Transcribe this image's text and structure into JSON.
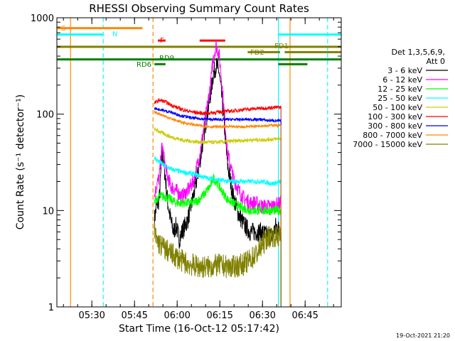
{
  "chart_data": {
    "type": "line",
    "title": "RHESSI Observing Summary Count Rates",
    "xlabel": "Start Time (16-Oct-12 05:17:42)",
    "ylabel": "Count Rate (s⁻¹ detector⁻¹)",
    "yscale": "log",
    "ylim": [
      1,
      1000
    ],
    "xlim_minutes": [
      0,
      100
    ],
    "x_ticks": [
      {
        "label": "05:30",
        "t": 12.3
      },
      {
        "label": "05:45",
        "t": 27.3
      },
      {
        "label": "06:00",
        "t": 42.3
      },
      {
        "label": "06:15",
        "t": 57.3
      },
      {
        "label": "06:30",
        "t": 72.3
      },
      {
        "label": "06:45",
        "t": 87.3
      }
    ],
    "y_ticks": [
      {
        "label": "1",
        "v": 1
      },
      {
        "label": "10",
        "v": 10
      },
      {
        "label": "100",
        "v": 100
      },
      {
        "label": "1000",
        "v": 1000
      }
    ],
    "legend": {
      "header": [
        "Det 1,3,5,6,9,",
        "Att 0"
      ],
      "entries": [
        {
          "label": "3 - 6 keV",
          "color": "#000000"
        },
        {
          "label": "6 - 12 keV",
          "color": "#ff00ff"
        },
        {
          "label": "12 - 25 keV",
          "color": "#00ff00"
        },
        {
          "label": "25 - 50 keV",
          "color": "#00ffff"
        },
        {
          "label": "50 - 100 keV",
          "color": "#cccc00"
        },
        {
          "label": "100 - 300 keV",
          "color": "#ff0000"
        },
        {
          "label": "300 - 800 keV",
          "color": "#0000ff"
        },
        {
          "label": "800 - 7000 keV",
          "color": "#ff8800"
        },
        {
          "label": "7000 - 15000 keV",
          "color": "#808000"
        }
      ]
    },
    "data_window_minutes": [
      34.3,
      78.8
    ],
    "series": [
      {
        "name": "3 - 6 keV",
        "color": "#000000",
        "points": [
          [
            34.3,
            8
          ],
          [
            35,
            11
          ],
          [
            36,
            13
          ],
          [
            37,
            40
          ],
          [
            38,
            24
          ],
          [
            39,
            12
          ],
          [
            40,
            8
          ],
          [
            41,
            6
          ],
          [
            42,
            7
          ],
          [
            43,
            5
          ],
          [
            44,
            6
          ],
          [
            46,
            8
          ],
          [
            48,
            14
          ],
          [
            50,
            28
          ],
          [
            52,
            70
          ],
          [
            54,
            160
          ],
          [
            55,
            260
          ],
          [
            56,
            320
          ],
          [
            57,
            280
          ],
          [
            58,
            150
          ],
          [
            59,
            70
          ],
          [
            60,
            30
          ],
          [
            62,
            14
          ],
          [
            64,
            9
          ],
          [
            66,
            7
          ],
          [
            68,
            6
          ],
          [
            70,
            6
          ],
          [
            72,
            6
          ],
          [
            74,
            5.5
          ],
          [
            76,
            5.5
          ],
          [
            77,
            7
          ],
          [
            78.8,
            6
          ]
        ]
      },
      {
        "name": "6 - 12 keV",
        "color": "#ff00ff",
        "points": [
          [
            34.3,
            14
          ],
          [
            35,
            18
          ],
          [
            36,
            22
          ],
          [
            37,
            48
          ],
          [
            38,
            30
          ],
          [
            39,
            22
          ],
          [
            40,
            18
          ],
          [
            42,
            16
          ],
          [
            44,
            14
          ],
          [
            46,
            16
          ],
          [
            48,
            20
          ],
          [
            50,
            35
          ],
          [
            52,
            80
          ],
          [
            54,
            200
          ],
          [
            55,
            380
          ],
          [
            56,
            520
          ],
          [
            57,
            420
          ],
          [
            58,
            220
          ],
          [
            59,
            90
          ],
          [
            60,
            40
          ],
          [
            62,
            22
          ],
          [
            64,
            16
          ],
          [
            66,
            13
          ],
          [
            68,
            12
          ],
          [
            70,
            12
          ],
          [
            72,
            11
          ],
          [
            74,
            11
          ],
          [
            76,
            11
          ],
          [
            78.8,
            12
          ]
        ]
      },
      {
        "name": "12 - 25 keV",
        "color": "#00ff00",
        "points": [
          [
            34.3,
            12
          ],
          [
            35,
            13
          ],
          [
            36,
            14
          ],
          [
            38,
            14
          ],
          [
            40,
            13
          ],
          [
            42,
            12
          ],
          [
            44,
            12
          ],
          [
            46,
            12
          ],
          [
            48,
            12
          ],
          [
            50,
            13
          ],
          [
            52,
            15
          ],
          [
            54,
            18
          ],
          [
            55,
            22
          ],
          [
            56,
            20
          ],
          [
            58,
            16
          ],
          [
            60,
            13
          ],
          [
            64,
            11
          ],
          [
            68,
            10
          ],
          [
            72,
            10
          ],
          [
            76,
            10
          ],
          [
            78.8,
            10
          ]
        ]
      },
      {
        "name": "25 - 50 keV",
        "color": "#00ffff",
        "points": [
          [
            34.3,
            35
          ],
          [
            36,
            32
          ],
          [
            38,
            29
          ],
          [
            40,
            27
          ],
          [
            44,
            25
          ],
          [
            48,
            24
          ],
          [
            52,
            22
          ],
          [
            56,
            21
          ],
          [
            60,
            20
          ],
          [
            64,
            20
          ],
          [
            68,
            20
          ],
          [
            72,
            20
          ],
          [
            76,
            19
          ],
          [
            78.8,
            20
          ]
        ]
      },
      {
        "name": "50 - 100 keV",
        "color": "#cccc00",
        "points": [
          [
            34.3,
            70
          ],
          [
            36,
            66
          ],
          [
            38,
            62
          ],
          [
            40,
            58
          ],
          [
            44,
            54
          ],
          [
            48,
            52
          ],
          [
            52,
            51
          ],
          [
            56,
            51
          ],
          [
            60,
            52
          ],
          [
            64,
            53
          ],
          [
            68,
            54
          ],
          [
            72,
            54
          ],
          [
            76,
            55
          ],
          [
            78.8,
            56
          ]
        ]
      },
      {
        "name": "100 - 300 keV",
        "color": "#ff0000",
        "points": [
          [
            34.3,
            130
          ],
          [
            36,
            140
          ],
          [
            38,
            135
          ],
          [
            40,
            125
          ],
          [
            42,
            118
          ],
          [
            44,
            112
          ],
          [
            46,
            108
          ],
          [
            48,
            105
          ],
          [
            50,
            103
          ],
          [
            52,
            102
          ],
          [
            54,
            103
          ],
          [
            56,
            104
          ],
          [
            58,
            106
          ],
          [
            60,
            107
          ],
          [
            62,
            108
          ],
          [
            64,
            110
          ],
          [
            66,
            112
          ],
          [
            68,
            113
          ],
          [
            70,
            114
          ],
          [
            72,
            115
          ],
          [
            74,
            116
          ],
          [
            76,
            117
          ],
          [
            78.8,
            118
          ]
        ]
      },
      {
        "name": "300 - 800 keV",
        "color": "#0000ff",
        "points": [
          [
            34.3,
            115
          ],
          [
            36,
            112
          ],
          [
            38,
            108
          ],
          [
            40,
            105
          ],
          [
            42,
            100
          ],
          [
            44,
            96
          ],
          [
            46,
            93
          ],
          [
            48,
            91
          ],
          [
            50,
            90
          ],
          [
            52,
            89
          ],
          [
            54,
            88
          ],
          [
            56,
            88
          ],
          [
            58,
            88
          ],
          [
            60,
            88
          ],
          [
            62,
            88
          ],
          [
            64,
            88
          ],
          [
            66,
            88
          ],
          [
            68,
            88
          ],
          [
            70,
            88
          ],
          [
            72,
            88
          ],
          [
            74,
            86
          ],
          [
            76,
            86
          ],
          [
            78.8,
            85
          ]
        ]
      },
      {
        "name": "800 - 7000 keV",
        "color": "#ff8800",
        "points": [
          [
            34.3,
            105
          ],
          [
            36,
            101
          ],
          [
            38,
            95
          ],
          [
            40,
            90
          ],
          [
            42,
            86
          ],
          [
            44,
            82
          ],
          [
            46,
            80
          ],
          [
            48,
            78
          ],
          [
            50,
            76
          ],
          [
            52,
            75
          ],
          [
            54,
            74
          ],
          [
            56,
            74
          ],
          [
            58,
            74
          ],
          [
            60,
            74
          ],
          [
            62,
            74
          ],
          [
            64,
            74
          ],
          [
            66,
            74
          ],
          [
            68,
            75
          ],
          [
            70,
            75
          ],
          [
            72,
            76
          ],
          [
            74,
            76
          ],
          [
            76,
            77
          ],
          [
            78.8,
            76
          ]
        ]
      },
      {
        "name": "7000 - 15000 keV",
        "color": "#808000",
        "points": [
          [
            34.3,
            6
          ],
          [
            35,
            5
          ],
          [
            36,
            4.5
          ],
          [
            38,
            4
          ],
          [
            40,
            3.6
          ],
          [
            42,
            3.3
          ],
          [
            44,
            3
          ],
          [
            46,
            2.8
          ],
          [
            48,
            2.7
          ],
          [
            50,
            2.6
          ],
          [
            52,
            2.6
          ],
          [
            54,
            2.6
          ],
          [
            56,
            2.7
          ],
          [
            58,
            2.7
          ],
          [
            60,
            2.6
          ],
          [
            62,
            2.6
          ],
          [
            64,
            2.7
          ],
          [
            66,
            2.8
          ],
          [
            68,
            3.1
          ],
          [
            70,
            3.5
          ],
          [
            72,
            4.2
          ],
          [
            74,
            5.3
          ],
          [
            76,
            5.5
          ],
          [
            78.8,
            5.3
          ]
        ]
      }
    ],
    "state_bars": [
      {
        "label": "S",
        "label_color": "#ff8800",
        "color": "#ff8800",
        "level": 780,
        "segments": [
          [
            0,
            30.1
          ]
        ]
      },
      {
        "label": "N",
        "label_color": "#00ffff",
        "color": "#00ffff",
        "level": 670,
        "segments": [
          [
            0,
            16.3
          ],
          [
            77.9,
            100
          ]
        ]
      },
      {
        "label": "F",
        "label_color": "#ff0000",
        "color": "#ff0000",
        "level": 580,
        "segments": [
          [
            35.5,
            38.2
          ],
          [
            50.2,
            59.2
          ]
        ]
      },
      {
        "label": "",
        "label_color": "#808000",
        "color": "#808000",
        "level": 500,
        "segments": [
          [
            0,
            100
          ]
        ]
      },
      {
        "label": "FD1",
        "label_color": "#808000",
        "color": "#808000",
        "level": 500,
        "segments": []
      },
      {
        "label": "FD2",
        "label_color": "#808000",
        "color": "#808000",
        "level": 440,
        "segments": [
          [
            67.1,
            78.5
          ],
          [
            80.1,
            100
          ]
        ]
      },
      {
        "label": "RD9",
        "label_color": "#008000",
        "color": "#008000",
        "level": 370,
        "segments": [
          [
            0,
            100
          ]
        ]
      },
      {
        "label": "RD6",
        "label_color": "#008000",
        "color": "#008000",
        "level": 330,
        "segments": [
          [
            34.3,
            38.2
          ],
          [
            77.9,
            88.1
          ]
        ]
      }
    ],
    "vertical_markers": [
      {
        "t": 4.8,
        "color": "#ff8800",
        "style": "solid"
      },
      {
        "t": 16.3,
        "color": "#00ffff",
        "style": "dashed"
      },
      {
        "t": 33.8,
        "color": "#ff8800",
        "style": "dashed"
      },
      {
        "t": 77.9,
        "color": "#00ffff",
        "style": "solid"
      },
      {
        "t": 82.0,
        "color": "#ff8800",
        "style": "solid"
      },
      {
        "t": 95.2,
        "color": "#00ffff",
        "style": "dashed"
      }
    ],
    "timestamp": "19-Oct-2021 21:20"
  }
}
